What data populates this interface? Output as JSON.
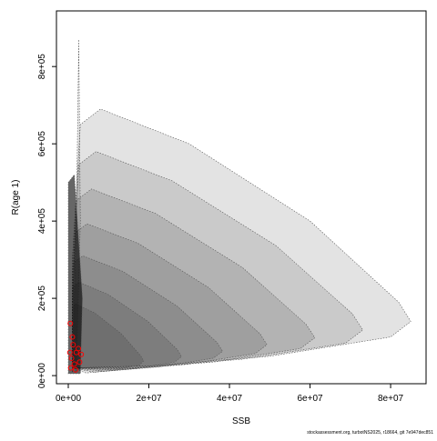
{
  "chart_data": {
    "type": "region",
    "x_label": "SSB",
    "y_label": "R(age 1)",
    "footer": "stockassessment.org, turbotNS2025, r18664, git 7e947dec851",
    "xlim": [
      -2940000,
      88800000
    ],
    "ylim": [
      -21000,
      944000
    ],
    "xticks": [
      {
        "value": 0,
        "label": "0e+00"
      },
      {
        "value": 20000000,
        "label": "2e+07"
      },
      {
        "value": 40000000,
        "label": "4e+07"
      },
      {
        "value": 60000000,
        "label": "6e+07"
      },
      {
        "value": 80000000,
        "label": "8e+07"
      }
    ],
    "yticks": [
      {
        "value": 0,
        "label": "0e+00"
      },
      {
        "value": 200000,
        "label": "2e+05"
      },
      {
        "value": 400000,
        "label": "4e+05"
      },
      {
        "value": 600000,
        "label": "6e+05"
      },
      {
        "value": 800000,
        "label": "8e+05"
      }
    ],
    "region_color": "#000000",
    "regions": [
      {
        "x": [
          1000000,
          1000000,
          3000000,
          8000000,
          30000000,
          60000000,
          82000000,
          85000000,
          80000000,
          50000000,
          20000000
        ],
        "y": [
          20000,
          300000,
          650000,
          690000,
          600000,
          400000,
          190000,
          140000,
          100000,
          50000,
          25000
        ]
      },
      {
        "x": [
          1000000,
          1000000,
          2580000,
          6880000,
          25800000,
          51600000,
          70500000,
          73100000,
          68800000,
          43000000,
          17200000
        ],
        "y": [
          20000,
          252000,
          546000,
          580000,
          504000,
          336000,
          160000,
          118000,
          84000,
          42000,
          21000
        ]
      },
      {
        "x": [
          1000000,
          1000000,
          2160000,
          5760000,
          21600000,
          43200000,
          59000000,
          61200000,
          57600000,
          36000000,
          14400000
        ],
        "y": [
          20000,
          210000,
          455000,
          483000,
          420000,
          280000,
          133000,
          98000,
          70000,
          35000,
          17500
        ]
      },
      {
        "x": [
          1000000,
          1000000,
          1740000,
          4640000,
          17400000,
          34800000,
          47600000,
          49300000,
          46400000,
          29000000,
          11600000
        ],
        "y": [
          20000,
          171000,
          370000,
          393000,
          342000,
          228000,
          108000,
          80000,
          57000,
          28500,
          14300
        ]
      },
      {
        "x": [
          1000000,
          1000000,
          1350000,
          3600000,
          13500000,
          27000000,
          36900000,
          38300000,
          36000000,
          22500000,
          9000000
        ],
        "y": [
          20000,
          135000,
          293000,
          310000,
          270000,
          180000,
          86000,
          63000,
          45000,
          22500,
          11300
        ]
      },
      {
        "x": [
          1000000,
          1000000,
          1000000,
          2640000,
          9900000,
          19800000,
          27100000,
          28100000,
          26400000,
          16500000,
          6600000
        ],
        "y": [
          20000,
          105000,
          228000,
          242000,
          210000,
          140000,
          67000,
          49000,
          35000,
          17500,
          8800
        ]
      },
      {
        "x": [
          1000000,
          1000000,
          1000000,
          1760000,
          6600000,
          13200000,
          18000000,
          18700000,
          17600000,
          11000000,
          4400000
        ],
        "y": [
          20000,
          81000,
          176000,
          186000,
          162000,
          108000,
          51000,
          38000,
          27000,
          13500,
          6800
        ]
      },
      {
        "x": [
          1000000,
          2000000,
          2600000,
          3000000,
          2000000
        ],
        "y": [
          10000,
          400000,
          870000,
          400000,
          10000
        ]
      },
      {
        "x": [
          0,
          0,
          1500000,
          3500000,
          3000000
        ],
        "y": [
          5000,
          500000,
          520000,
          200000,
          5000
        ]
      }
    ],
    "points": {
      "color": "#ff0000",
      "x": [
        500000,
        1200000,
        2000000,
        800000,
        1500000,
        2500000,
        3200000,
        600000,
        1800000,
        2800000,
        1000000,
        400000
      ],
      "y": [
        135000,
        80000,
        60000,
        45000,
        30000,
        70000,
        55000,
        20000,
        15000,
        35000,
        100000,
        60000
      ]
    }
  }
}
